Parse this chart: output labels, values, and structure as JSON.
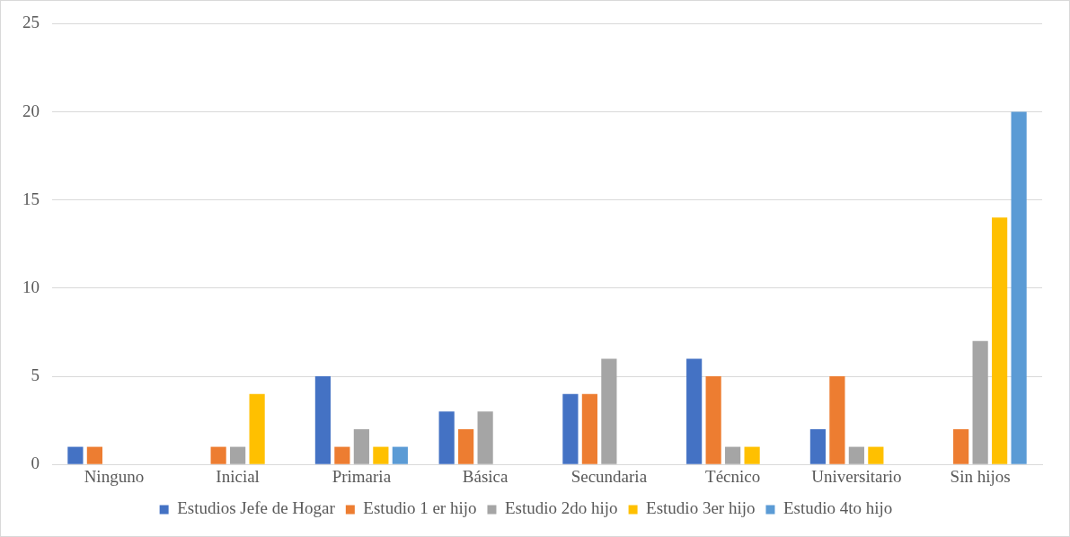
{
  "chart_data": {
    "type": "bar",
    "categories": [
      "Ninguno",
      "Inicial",
      "Primaria",
      "Básica",
      "Secundaria",
      "Técnico",
      "Universitario",
      "Sin hijos"
    ],
    "series": [
      {
        "name": "Estudios Jefe de Hogar",
        "color": "#4472c4",
        "values": [
          1,
          0,
          5,
          3,
          4,
          6,
          2,
          0
        ]
      },
      {
        "name": "Estudio 1 er hijo",
        "color": "#ed7d31",
        "values": [
          1,
          1,
          1,
          2,
          4,
          5,
          5,
          2
        ]
      },
      {
        "name": "Estudio 2do hijo",
        "color": "#a5a5a5",
        "values": [
          0,
          1,
          2,
          3,
          6,
          1,
          1,
          7
        ]
      },
      {
        "name": "Estudio 3er hijo",
        "color": "#ffc000",
        "values": [
          0,
          4,
          1,
          0,
          0,
          1,
          1,
          14
        ]
      },
      {
        "name": "Estudio 4to hijo",
        "color": "#5b9bd5",
        "values": [
          0,
          0,
          1,
          0,
          0,
          0,
          0,
          20
        ]
      }
    ],
    "ylim": [
      0,
      25
    ],
    "yticks": [
      0,
      5,
      10,
      15,
      20,
      25
    ],
    "grid": "y",
    "legend": "bottom"
  }
}
